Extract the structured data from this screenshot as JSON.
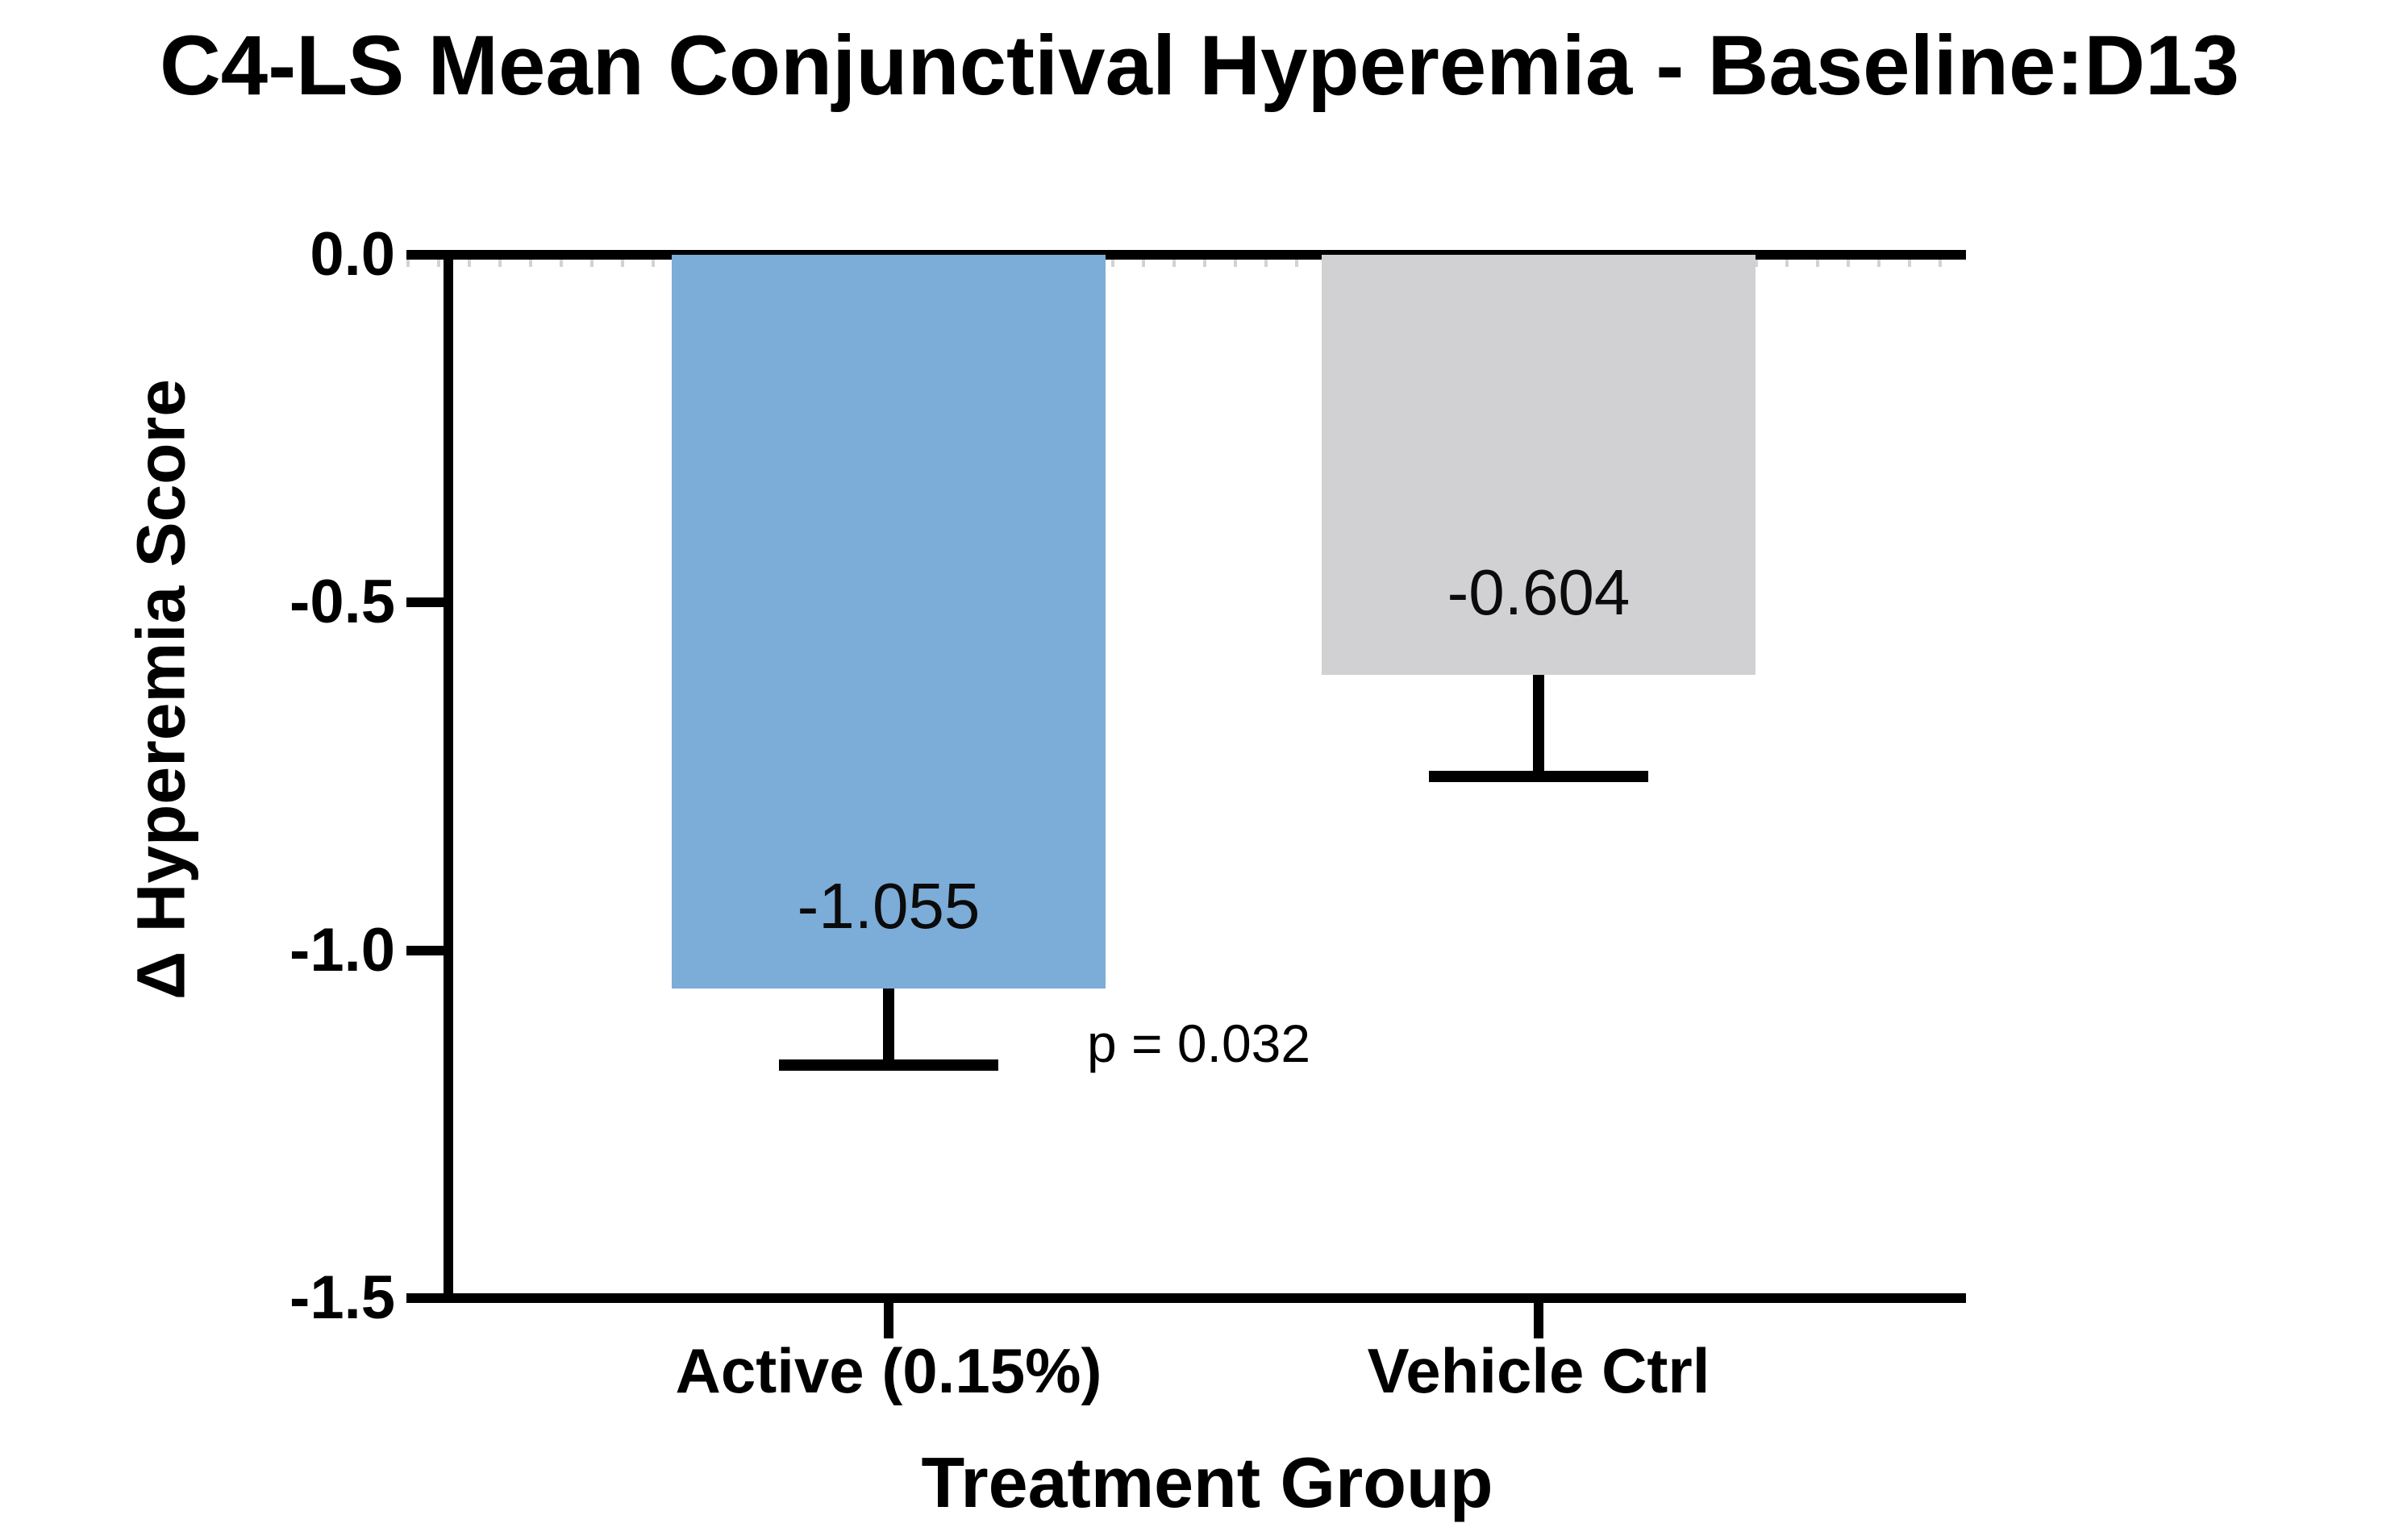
{
  "page": {
    "background": "#ffffff"
  },
  "chart_data": {
    "type": "bar",
    "title": "C4-LS Mean Conjunctival Hyperemia - Baseline:D13",
    "xlabel": "Treatment Group",
    "ylabel": "Δ Hyperemia Score",
    "categories": [
      "Active (0.15%)",
      "Vehicle Ctrl"
    ],
    "values": [
      -1.055,
      -0.604
    ],
    "value_labels": [
      "-1.055",
      "-0.604"
    ],
    "error_bar_lower_caps": [
      -1.165,
      -0.75
    ],
    "bar_colors": [
      "#7CACD8",
      "#D1D1D3"
    ],
    "bar_color_names": [
      "steel-blue",
      "light-gray"
    ],
    "ylim": [
      0,
      -1.5
    ],
    "yticks": [
      0,
      -0.5,
      -1,
      -1.5
    ],
    "ytick_labels": [
      "0.0",
      "-0.5",
      "-1.0",
      "-1.5"
    ],
    "grid": false,
    "legend": null,
    "annotation": {
      "text": "p = 0.032"
    }
  }
}
